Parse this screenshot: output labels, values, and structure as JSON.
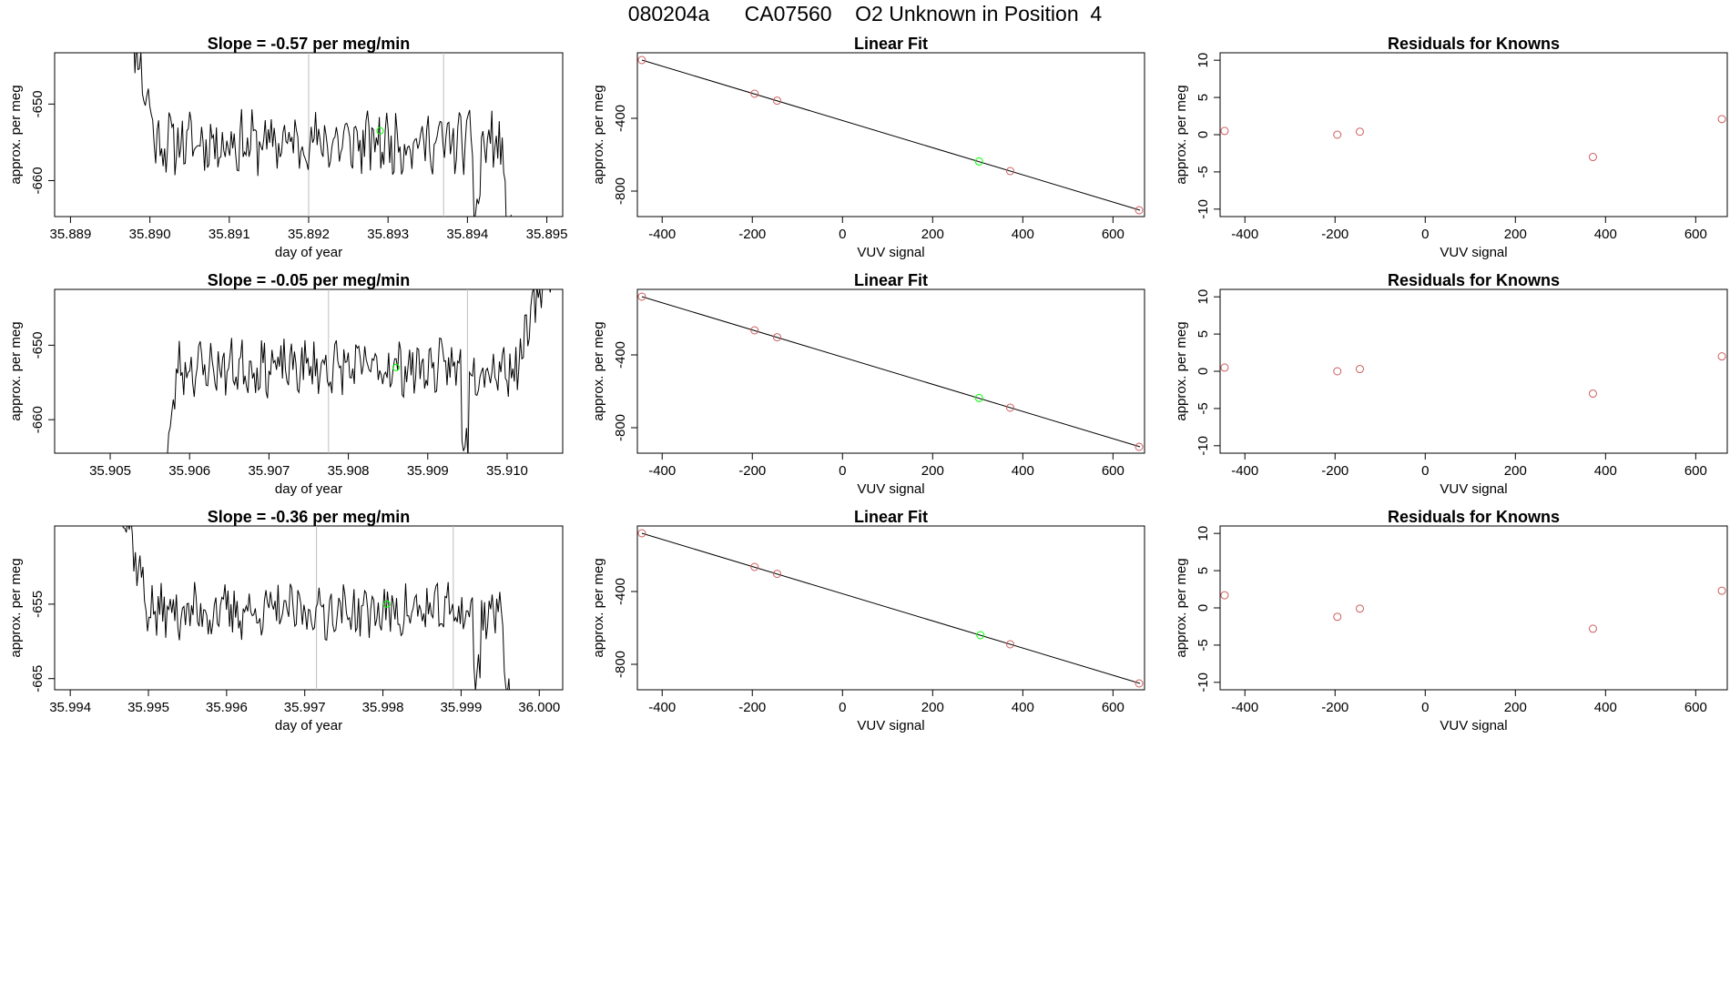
{
  "figure_title": "080204a      CA07560    O2 Unknown in Position  4",
  "colors": {
    "line": "#000000",
    "grid_vline": "#bebebe",
    "known_point": "#cd5c5c",
    "unknown_point": "#00ff00"
  },
  "chart_data": [
    {
      "type": "line",
      "panel": "timeseries-1",
      "title": "Slope =  -0.57  per meg/min",
      "xlabel": "day of year",
      "ylabel": "approx. per meg",
      "xlim": [
        35.8888,
        35.8952
      ],
      "ylim": [
        -664.7,
        -643.3
      ],
      "xticks": [
        35.889,
        35.89,
        35.891,
        35.892,
        35.893,
        35.894,
        35.895
      ],
      "xtick_labels": [
        "35.889",
        "35.890",
        "35.891",
        "35.892",
        "35.893",
        "35.894",
        "35.895"
      ],
      "yticks": [
        -650,
        -660
      ],
      "ytick_labels": [
        "-650",
        "-660"
      ],
      "vlines": [
        35.892,
        35.8937
      ],
      "unknown_marker": {
        "x": 35.8929,
        "y": -653.5
      },
      "seed": 11,
      "shape": "down-plateau-down",
      "x_start": 35.8897,
      "x_end": 35.89455,
      "y_base": -655,
      "noise": 3.3
    },
    {
      "type": "scatter",
      "panel": "linear-fit-1",
      "title": "Linear Fit",
      "xlabel": "VUV signal",
      "ylabel": "approx. per meg",
      "xlim": [
        -455,
        670
      ],
      "ylim": [
        -940,
        -40
      ],
      "xticks": [
        -400,
        -200,
        0,
        200,
        400,
        600
      ],
      "xtick_labels": [
        "-400",
        "-200",
        "0",
        "200",
        "400",
        "600"
      ],
      "yticks": [
        -400,
        -800
      ],
      "ytick_labels": [
        "-400",
        "-800"
      ],
      "fit": {
        "x0": -445,
        "y0": -80,
        "x1": 660,
        "y1": -905
      },
      "knowns": [
        {
          "x": -445,
          "y": -80
        },
        {
          "x": -195,
          "y": -265
        },
        {
          "x": -145,
          "y": -303
        },
        {
          "x": 372,
          "y": -690
        },
        {
          "x": 658,
          "y": -905
        }
      ],
      "unknown": {
        "x": 303,
        "y": -637
      }
    },
    {
      "type": "scatter",
      "panel": "residuals-1",
      "title": "Residuals for Knowns",
      "xlabel": "VUV signal",
      "ylabel": "approx. per meg",
      "xlim": [
        -455,
        670
      ],
      "ylim": [
        -11,
        11
      ],
      "xticks": [
        -400,
        -200,
        0,
        200,
        400,
        600
      ],
      "xtick_labels": [
        "-400",
        "-200",
        "0",
        "200",
        "400",
        "600"
      ],
      "yticks": [
        10,
        5,
        0,
        -5,
        -10
      ],
      "ytick_labels": [
        "10",
        "5",
        "0",
        "-5",
        "-10"
      ],
      "knowns": [
        {
          "x": -445,
          "y": 0.5
        },
        {
          "x": -195,
          "y": 0.0
        },
        {
          "x": -145,
          "y": 0.4
        },
        {
          "x": 372,
          "y": -3.0
        },
        {
          "x": 658,
          "y": 2.1
        }
      ]
    },
    {
      "type": "line",
      "panel": "timeseries-2",
      "title": "Slope =  -0.05  per meg/min",
      "xlabel": "day of year",
      "ylabel": "approx. per meg",
      "xlim": [
        35.9043,
        35.9107
      ],
      "ylim": [
        -664.5,
        -642.5
      ],
      "xticks": [
        35.905,
        35.906,
        35.907,
        35.908,
        35.909,
        35.91
      ],
      "xtick_labels": [
        "35.905",
        "35.906",
        "35.907",
        "35.908",
        "35.909",
        "35.910"
      ],
      "yticks": [
        -650,
        -660
      ],
      "ytick_labels": [
        "-650",
        "-660"
      ],
      "vlines": [
        35.90775,
        35.9095
      ],
      "unknown_marker": {
        "x": 35.9086,
        "y": -653.0
      },
      "seed": 23,
      "shape": "up-plateau-up",
      "x_start": 35.9057,
      "x_end": 35.9106,
      "y_base": -653,
      "noise": 3.0
    },
    {
      "type": "scatter",
      "panel": "linear-fit-2",
      "title": "Linear Fit",
      "xlabel": "VUV signal",
      "ylabel": "approx. per meg",
      "xlim": [
        -455,
        670
      ],
      "ylim": [
        -940,
        -40
      ],
      "xticks": [
        -400,
        -200,
        0,
        200,
        400,
        600
      ],
      "xtick_labels": [
        "-400",
        "-200",
        "0",
        "200",
        "400",
        "600"
      ],
      "yticks": [
        -400,
        -800
      ],
      "ytick_labels": [
        "-400",
        "-800"
      ],
      "fit": {
        "x0": -445,
        "y0": -80,
        "x1": 660,
        "y1": -905
      },
      "knowns": [
        {
          "x": -445,
          "y": -80
        },
        {
          "x": -195,
          "y": -265
        },
        {
          "x": -145,
          "y": -303
        },
        {
          "x": 372,
          "y": -690
        },
        {
          "x": 658,
          "y": -905
        }
      ],
      "unknown": {
        "x": 303,
        "y": -637
      }
    },
    {
      "type": "scatter",
      "panel": "residuals-2",
      "title": "Residuals for Knowns",
      "xlabel": "VUV signal",
      "ylabel": "approx. per meg",
      "xlim": [
        -455,
        670
      ],
      "ylim": [
        -11,
        11
      ],
      "xticks": [
        -400,
        -200,
        0,
        200,
        400,
        600
      ],
      "xtick_labels": [
        "-400",
        "-200",
        "0",
        "200",
        "400",
        "600"
      ],
      "yticks": [
        10,
        5,
        0,
        -5,
        -10
      ],
      "ytick_labels": [
        "10",
        "5",
        "0",
        "-5",
        "-10"
      ],
      "knowns": [
        {
          "x": -445,
          "y": 0.5
        },
        {
          "x": -195,
          "y": 0.0
        },
        {
          "x": -145,
          "y": 0.3
        },
        {
          "x": 372,
          "y": -3.0
        },
        {
          "x": 658,
          "y": 2.0
        }
      ]
    },
    {
      "type": "line",
      "panel": "timeseries-3",
      "title": "Slope =  -0.36  per meg/min",
      "xlabel": "day of year",
      "ylabel": "approx. per meg",
      "xlim": [
        35.9938,
        36.0003
      ],
      "ylim": [
        -666.5,
        -644.5
      ],
      "xticks": [
        35.994,
        35.995,
        35.996,
        35.997,
        35.998,
        35.999,
        36.0
      ],
      "xtick_labels": [
        "35.994",
        "35.995",
        "35.996",
        "35.997",
        "35.998",
        "35.999",
        "36.000"
      ],
      "yticks": [
        -655,
        -665
      ],
      "ytick_labels": [
        "-655",
        "-665"
      ],
      "vlines": [
        35.99715,
        35.9989
      ],
      "unknown_marker": {
        "x": 35.99805,
        "y": -655.0
      },
      "seed": 37,
      "shape": "down-plateau-down",
      "x_start": 35.9946,
      "x_end": 35.99965,
      "y_base": -656,
      "noise": 3.0
    },
    {
      "type": "scatter",
      "panel": "linear-fit-3",
      "title": "Linear Fit",
      "xlabel": "VUV signal",
      "ylabel": "approx. per meg",
      "xlim": [
        -455,
        670
      ],
      "ylim": [
        -940,
        -40
      ],
      "xticks": [
        -400,
        -200,
        0,
        200,
        400,
        600
      ],
      "xtick_labels": [
        "-400",
        "-200",
        "0",
        "200",
        "400",
        "600"
      ],
      "yticks": [
        -400,
        -800
      ],
      "ytick_labels": [
        "-400",
        "-800"
      ],
      "fit": {
        "x0": -445,
        "y0": -80,
        "x1": 660,
        "y1": -905
      },
      "knowns": [
        {
          "x": -445,
          "y": -80
        },
        {
          "x": -195,
          "y": -265
        },
        {
          "x": -145,
          "y": -303
        },
        {
          "x": 372,
          "y": -690
        },
        {
          "x": 658,
          "y": -905
        }
      ],
      "unknown": {
        "x": 306,
        "y": -640
      }
    },
    {
      "type": "scatter",
      "panel": "residuals-3",
      "title": "Residuals for Knowns",
      "xlabel": "VUV signal",
      "ylabel": "approx. per meg",
      "xlim": [
        -455,
        670
      ],
      "ylim": [
        -11,
        11
      ],
      "xticks": [
        -400,
        -200,
        0,
        200,
        400,
        600
      ],
      "xtick_labels": [
        "-400",
        "-200",
        "0",
        "200",
        "400",
        "600"
      ],
      "yticks": [
        10,
        5,
        0,
        -5,
        -10
      ],
      "ytick_labels": [
        "10",
        "5",
        "0",
        "-5",
        "-10"
      ],
      "knowns": [
        {
          "x": -445,
          "y": 1.7
        },
        {
          "x": -195,
          "y": -1.2
        },
        {
          "x": -145,
          "y": -0.1
        },
        {
          "x": 372,
          "y": -2.8
        },
        {
          "x": 658,
          "y": 2.3
        }
      ]
    }
  ]
}
